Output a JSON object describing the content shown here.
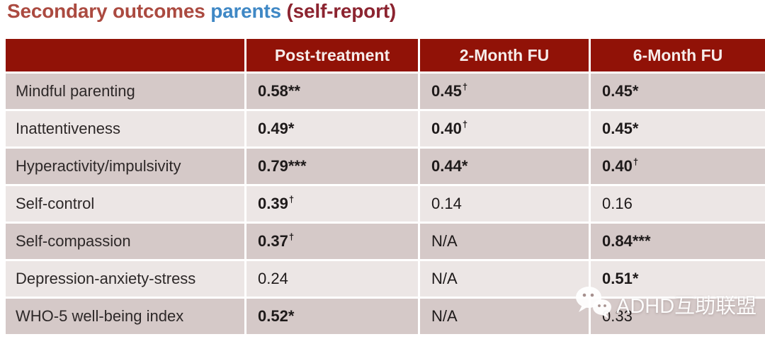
{
  "title": {
    "part1": "Secondary outcomes ",
    "part2": "parents",
    "part3": " (self-report)"
  },
  "colors": {
    "header_bg": "#911207",
    "header_text": "#f6ecea",
    "row_odd_bg": "#d5c9c8",
    "row_even_bg": "#ece6e5",
    "title_red": "#ab4a40",
    "title_blue": "#3f88c5",
    "title_maroon": "#8c2430"
  },
  "table": {
    "header": [
      "",
      "Post-treatment",
      "2-Month FU",
      "6-Month FU"
    ],
    "rows": [
      {
        "label": "Mindful parenting",
        "cells": [
          {
            "v": "0.58**",
            "sup": "",
            "b": true
          },
          {
            "v": "0.45",
            "sup": "†",
            "b": true
          },
          {
            "v": "0.45*",
            "sup": "",
            "b": true
          }
        ]
      },
      {
        "label": "Inattentiveness",
        "cells": [
          {
            "v": "0.49*",
            "sup": "",
            "b": true
          },
          {
            "v": "0.40",
            "sup": "†",
            "b": true
          },
          {
            "v": "0.45*",
            "sup": "",
            "b": true
          }
        ]
      },
      {
        "label": "Hyperactivity/impulsivity",
        "cells": [
          {
            "v": "0.79***",
            "sup": "",
            "b": true
          },
          {
            "v": "0.44*",
            "sup": "",
            "b": true
          },
          {
            "v": "0.40",
            "sup": "†",
            "b": true
          }
        ]
      },
      {
        "label": "Self-control",
        "cells": [
          {
            "v": "0.39",
            "sup": "†",
            "b": true
          },
          {
            "v": "0.14",
            "sup": "",
            "b": false
          },
          {
            "v": "0.16",
            "sup": "",
            "b": false
          }
        ]
      },
      {
        "label": "Self-compassion",
        "cells": [
          {
            "v": "0.37",
            "sup": "†",
            "b": true
          },
          {
            "v": "N/A",
            "sup": "",
            "b": false
          },
          {
            "v": "0.84***",
            "sup": "",
            "b": true
          }
        ]
      },
      {
        "label": "Depression-anxiety-stress",
        "cells": [
          {
            "v": "0.24",
            "sup": "",
            "b": false
          },
          {
            "v": "N/A",
            "sup": "",
            "b": false
          },
          {
            "v": "0.51*",
            "sup": "",
            "b": true
          }
        ]
      },
      {
        "label": "WHO-5 well-being index",
        "cells": [
          {
            "v": "0.52*",
            "sup": "",
            "b": true
          },
          {
            "v": "N/A",
            "sup": "",
            "b": false
          },
          {
            "v": "0.33",
            "sup": "",
            "b": false
          }
        ]
      }
    ]
  },
  "watermark": {
    "icon": "wechat-icon",
    "text": "ADHD互助联盟"
  },
  "chart_data": {
    "type": "table",
    "title": "Secondary outcomes parents (self-report)",
    "columns": [
      "",
      "Post-treatment",
      "2-Month FU",
      "6-Month FU"
    ],
    "rows": [
      [
        "Mindful parenting",
        "0.58**",
        "0.45†",
        "0.45*"
      ],
      [
        "Inattentiveness",
        "0.49*",
        "0.40†",
        "0.45*"
      ],
      [
        "Hyperactivity/impulsivity",
        "0.79***",
        "0.44*",
        "0.40†"
      ],
      [
        "Self-control",
        "0.39†",
        "0.14",
        "0.16"
      ],
      [
        "Self-compassion",
        "0.37†",
        "N/A",
        "0.84***"
      ],
      [
        "Depression-anxiety-stress",
        "0.24",
        "N/A",
        "0.51*"
      ],
      [
        "WHO-5 well-being index",
        "0.52*",
        "N/A",
        "0.33"
      ]
    ]
  }
}
